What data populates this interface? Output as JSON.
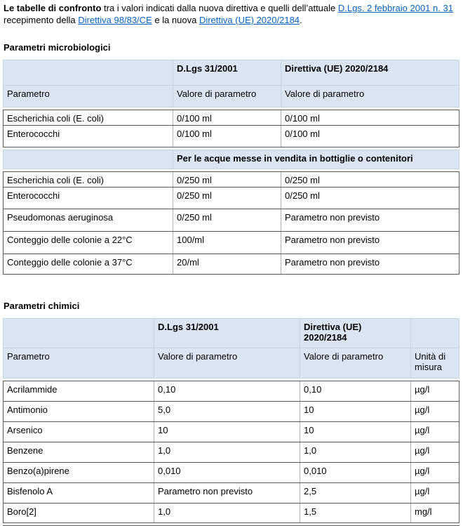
{
  "colors": {
    "header_fill": "#dbe5f1",
    "link": "#0563c1",
    "border_dark": "#5a5a5a",
    "border_light": "#b0b0b0",
    "border_blue": "#c6d3e3"
  },
  "intro": {
    "segments": [
      {
        "text": "Le tabelle di confronto",
        "style": "bold"
      },
      {
        "text": " tra i valori indicati dalla nuova direttiva e quelli dell’attuale ",
        "style": "plain"
      },
      {
        "text": "D.Lgs. 2 febbraio 2001 n. 31",
        "style": "link"
      },
      {
        "text": " recepimento della ",
        "style": "plain"
      },
      {
        "text": "Direttiva 98/83/CE",
        "style": "link"
      },
      {
        "text": " e la nuova ",
        "style": "plain"
      },
      {
        "text": "Direttiva (UE) 2020/2184",
        "style": "link"
      },
      {
        "text": ".",
        "style": "plain"
      }
    ]
  },
  "micro": {
    "heading": "Parametri microbiologici",
    "columns": [
      "",
      "D.Lgs 31/2001",
      "Direttiva (UE) 2020/2184"
    ],
    "subheader": [
      "Parametro",
      "Valore di parametro",
      "Valore di parametro"
    ],
    "rows_a": [
      [
        "Escherichia coli (E. coli)",
        "0/100 ml",
        "0/100 ml"
      ],
      [
        "Enterococchi",
        "0/100 ml",
        "0/100 ml"
      ]
    ],
    "band": "Per le acque messe in vendita in bottiglie o contenitori",
    "rows_b": [
      [
        "Escherichia coli (E. coli)",
        "0/250 ml",
        "0/250 ml"
      ],
      [
        "Enterococchi",
        "0/250 ml",
        "0/250 ml"
      ],
      [
        "Pseudomonas aeruginosa",
        "0/250 ml",
        "Parametro non previsto"
      ],
      [
        "Conteggio delle colonie a 22°C",
        "100/ml",
        "Parametro non previsto"
      ],
      [
        "Conteggio delle colonie a 37°C",
        "20/ml",
        "Parametro non previsto"
      ]
    ]
  },
  "chem": {
    "heading": "Parametri chimici",
    "columns": [
      "",
      "D.Lgs 31/2001",
      "Direttiva (UE) 2020/2184",
      ""
    ],
    "subheader": [
      "Parametro",
      "Valore di parametro",
      "Valore di parametro",
      "Unità di misura"
    ],
    "rows": [
      [
        "Acrilammide",
        "0,10",
        "0,10",
        "µg/l"
      ],
      [
        "Antimonio",
        "5,0",
        "10",
        "µg/l"
      ],
      [
        "Arsenico",
        "10",
        "10",
        "µg/l"
      ],
      [
        "Benzene",
        "1,0",
        "1,0",
        "µg/l"
      ],
      [
        "Benzo(a)pirene",
        "0,010",
        "0,010",
        "µg/l"
      ],
      [
        "Bisfenolo A",
        "Parametro non previsto",
        "2,5",
        "µg/l"
      ],
      [
        "Boro[2]",
        "1,0",
        "1,5",
        "mg/l"
      ]
    ]
  }
}
